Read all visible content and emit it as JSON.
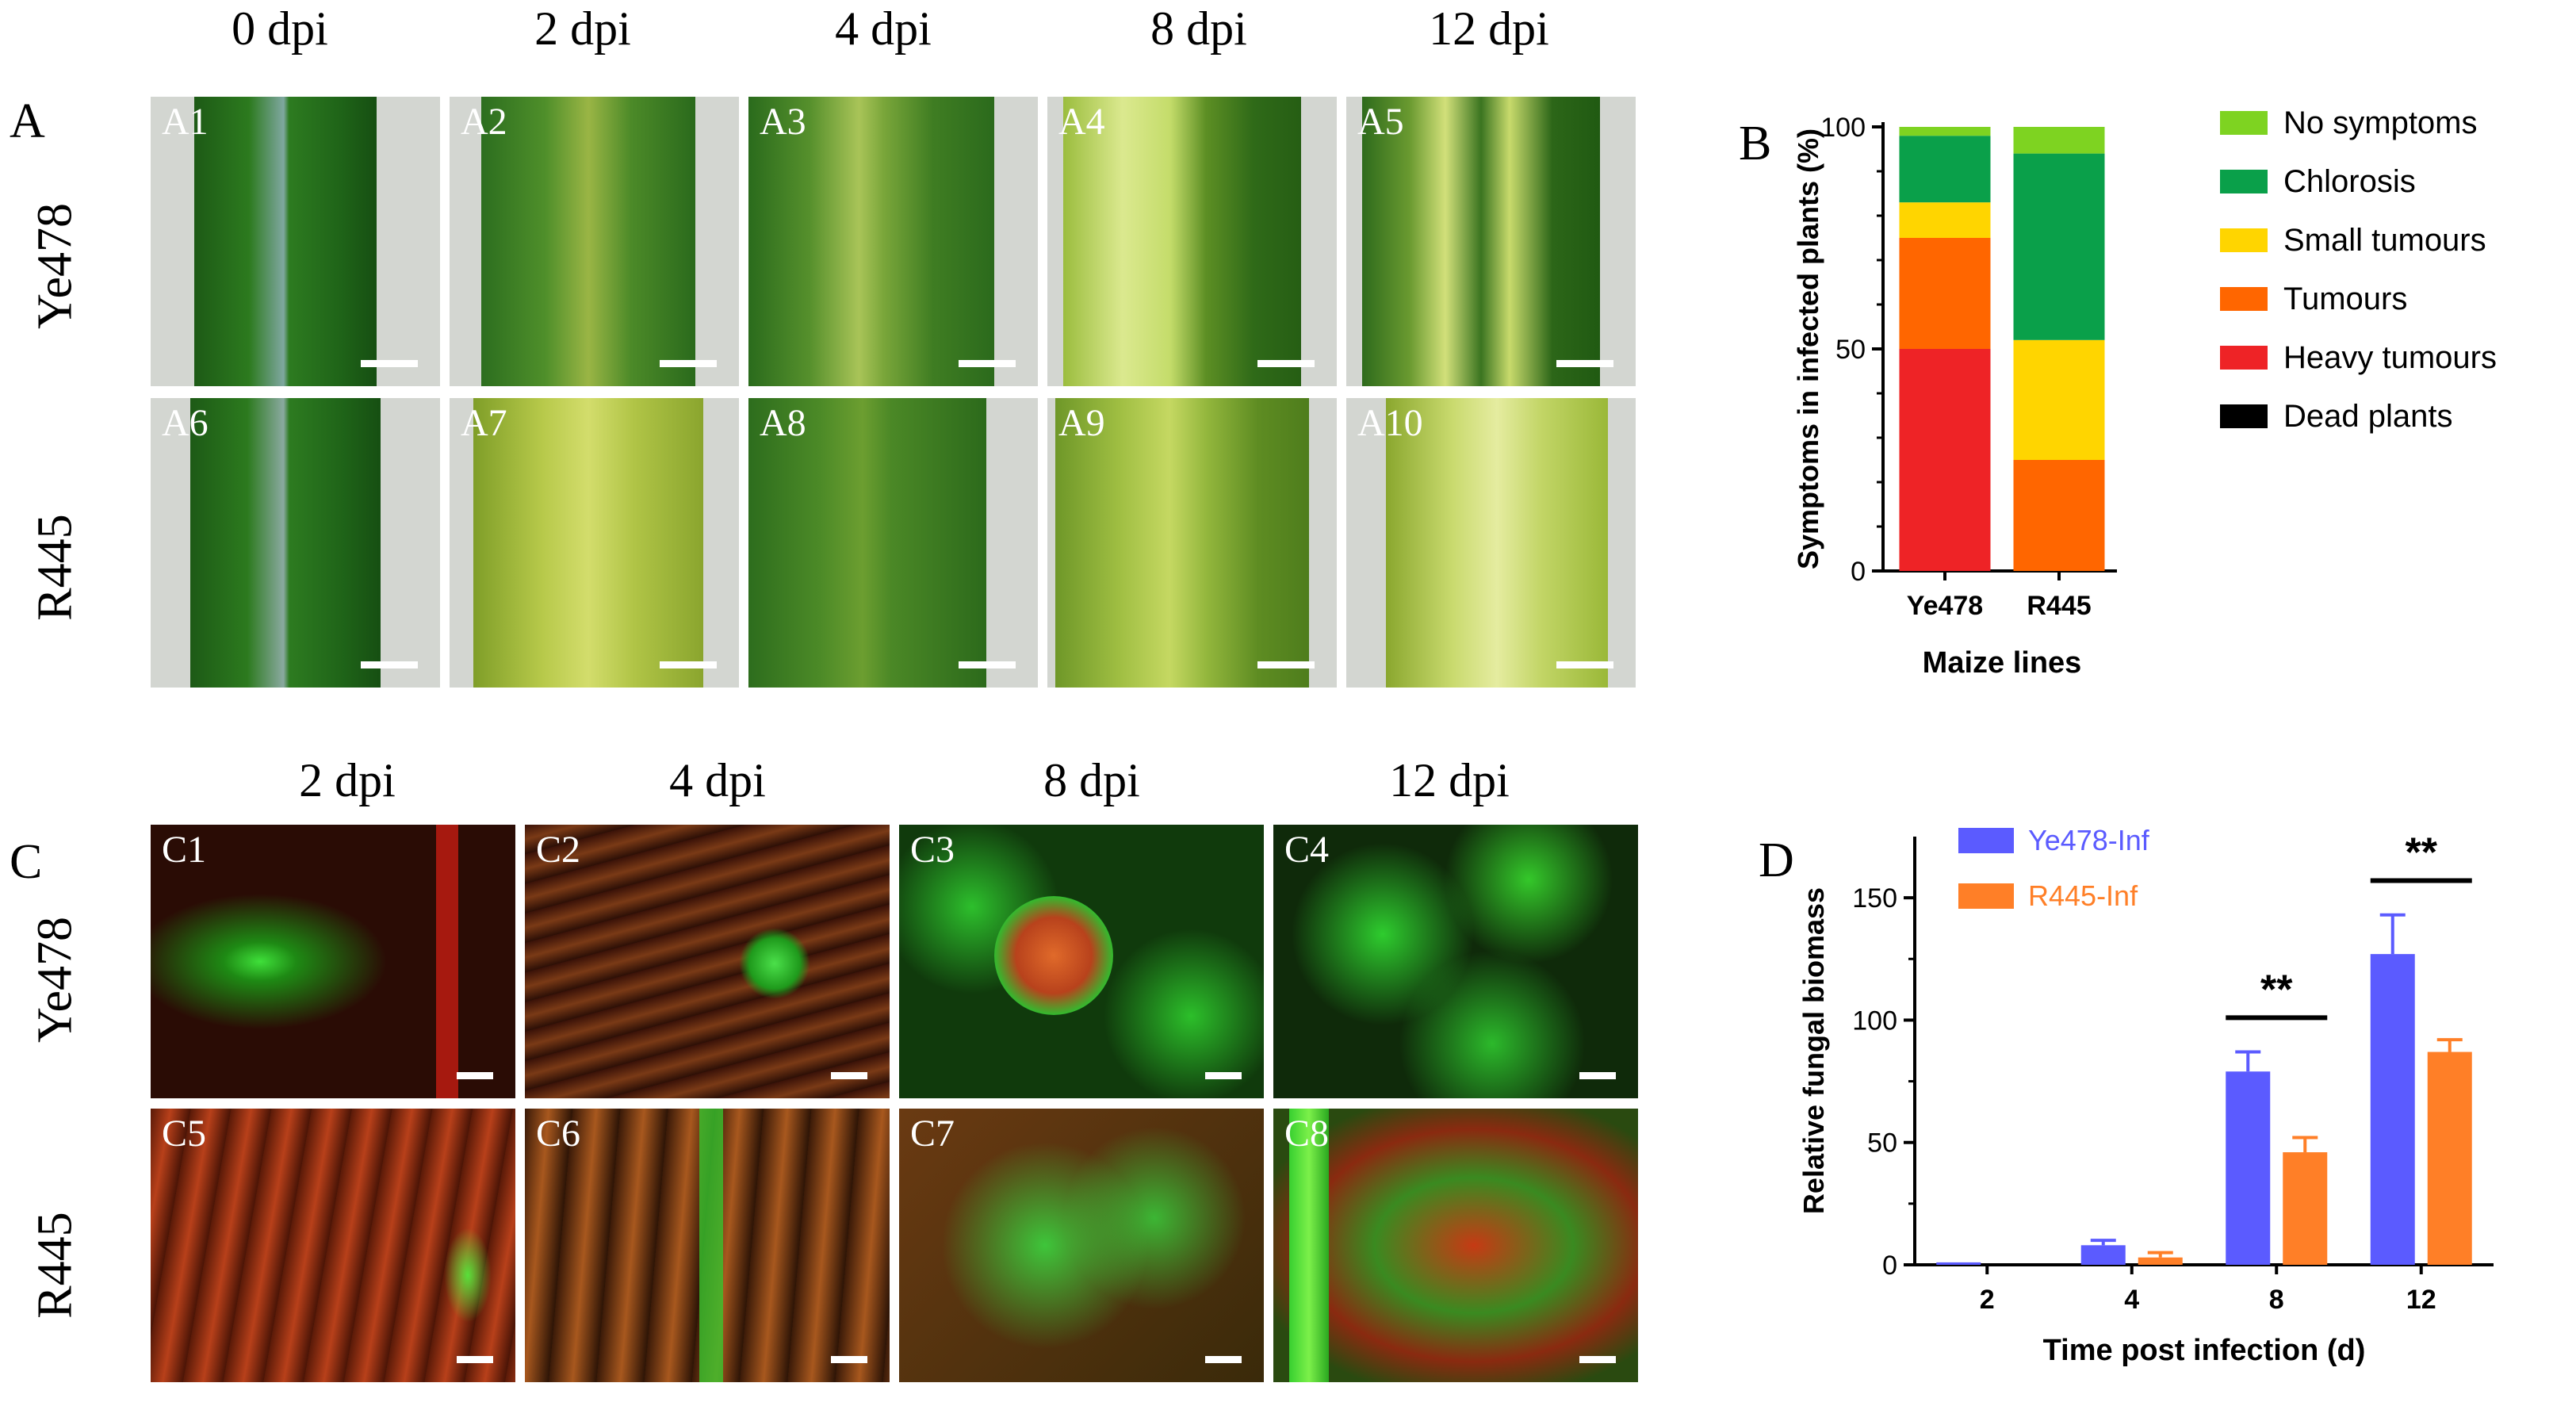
{
  "panelA": {
    "letter": "A",
    "columns": [
      "0 dpi",
      "2 dpi",
      "4 dpi",
      "8 dpi",
      "12 dpi"
    ],
    "rows": [
      "Ye478",
      "R445"
    ],
    "tiles": [
      "A1",
      "A2",
      "A3",
      "A4",
      "A5",
      "A6",
      "A7",
      "A8",
      "A9",
      "A10"
    ]
  },
  "panelC": {
    "letter": "C",
    "columns": [
      "2 dpi",
      "4 dpi",
      "8 dpi",
      "12 dpi"
    ],
    "rows": [
      "Ye478",
      "R445"
    ],
    "tiles": [
      "C1",
      "C2",
      "C3",
      "C4",
      "C5",
      "C6",
      "C7",
      "C8"
    ]
  },
  "panelB": {
    "letter": "B",
    "chart_data": {
      "type": "bar",
      "stacked": true,
      "categories": [
        "Ye478",
        "R445"
      ],
      "xlabel": "Maize lines",
      "ylabel": "Symptoms in infected plants (%)",
      "ylim": [
        0,
        100
      ],
      "yticks": [
        "0",
        "50",
        "100"
      ],
      "legend_position": "right",
      "series": [
        {
          "name": "Heavy tumours",
          "color": "#ee2326",
          "values": [
            50,
            0
          ]
        },
        {
          "name": "Tumours",
          "color": "#ff6600",
          "values": [
            25,
            25
          ]
        },
        {
          "name": "Small tumours",
          "color": "#ffd500",
          "values": [
            8,
            27
          ]
        },
        {
          "name": "Chlorosis",
          "color": "#0aa04a",
          "values": [
            15,
            42
          ]
        },
        {
          "name": "No symptoms",
          "color": "#7ed321",
          "values": [
            2,
            6
          ]
        },
        {
          "name": "Dead plants",
          "color": "#000000",
          "values": [
            0,
            0
          ]
        }
      ],
      "legend_order": [
        "No symptoms",
        "Chlorosis",
        "Small tumours",
        "Tumours",
        "Heavy tumours",
        "Dead plants"
      ]
    }
  },
  "panelD": {
    "letter": "D",
    "chart_data": {
      "type": "bar",
      "categories": [
        "2",
        "4",
        "8",
        "12"
      ],
      "xlabel": "Time post infection (d)",
      "ylabel": "Relative fungal biomass",
      "ylim": [
        0,
        175
      ],
      "yticks": [
        "0",
        "50",
        "100",
        "150"
      ],
      "legend_position": "top-left",
      "series": [
        {
          "name": "Ye478-Inf",
          "color": "#5b5bff",
          "values": [
            1,
            8,
            79,
            127
          ],
          "errors": [
            0,
            2,
            8,
            16
          ]
        },
        {
          "name": "R445-Inf",
          "color": "#ff7f27",
          "values": [
            0,
            3,
            46,
            87
          ],
          "errors": [
            0,
            2,
            6,
            5
          ]
        }
      ],
      "significance": [
        {
          "category": "8",
          "label": "**"
        },
        {
          "category": "12",
          "label": "**"
        }
      ]
    }
  }
}
